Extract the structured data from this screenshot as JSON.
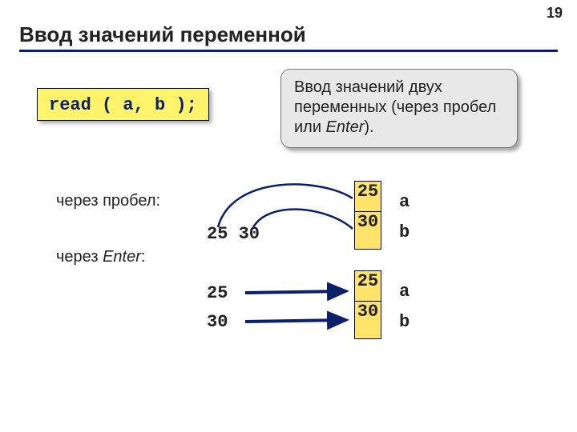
{
  "page_number": "19",
  "title": "Ввод значений переменной",
  "code": "read ( a, b );",
  "callout_html": "Ввод значений двух переменных (через пробел или <em>Enter</em>).",
  "label_space": "через пробел:",
  "label_enter_html": "через <em>Enter</em>:",
  "input_space": "25 30",
  "input_enter_1": "25",
  "input_enter_2": "30",
  "boxes": {
    "a1": "25",
    "b1": "30",
    "a2": "25",
    "b2": "30"
  },
  "varnames": {
    "a": "a",
    "b": "b"
  },
  "colors": {
    "rule": "#0b1f6b",
    "code_text": "#0b1f6b",
    "code_bg": "#fff36b",
    "callout_bg": "#e8e8e8",
    "box_bg": "#ffe36b",
    "arc_fill": "none",
    "arc_stroke": "#0b1f6b",
    "arrow_stroke": "#0b1f6b",
    "arrow_fill": "#0b1f6b"
  },
  "style": {
    "title_fontsize": 26,
    "body_fontsize": 20,
    "mono_fontsize": 22,
    "arc_stroke_width": 2.5,
    "arrow_stroke_width": 4
  }
}
